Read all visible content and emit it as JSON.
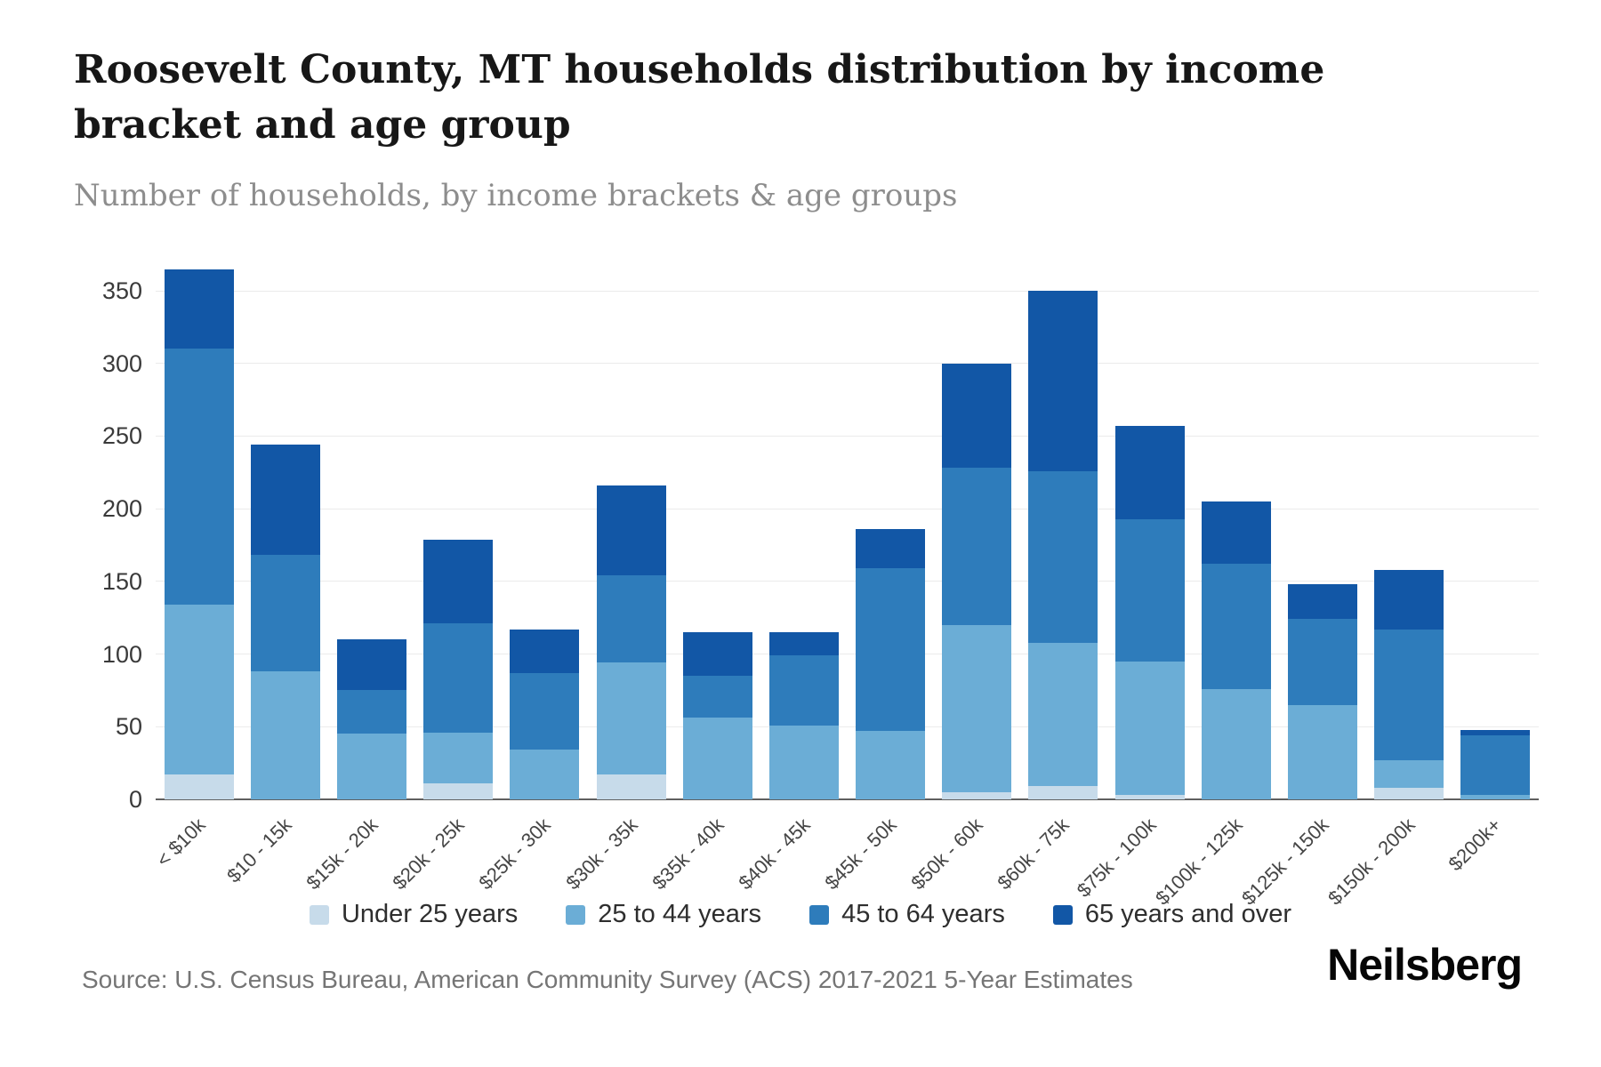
{
  "header": {
    "title": "Roosevelt County, MT households distribution by income bracket and age group",
    "subtitle": "Number of households, by income brackets & age groups"
  },
  "footer": {
    "source": "Source: U.S. Census Bureau, American Community Survey (ACS) 2017-2021 5-Year Estimates",
    "brand": "Neilsberg"
  },
  "chart_data": {
    "type": "bar",
    "stacked": true,
    "title": "Roosevelt County, MT households distribution by income bracket and age group",
    "xlabel": "",
    "ylabel": "Number of households",
    "ylim": [
      0,
      350
    ],
    "ytick_step": 50,
    "grid": true,
    "legend_position": "bottom",
    "categories": [
      "< $10k",
      "$10 - 15k",
      "$15k - 20k",
      "$20k - 25k",
      "$25k - 30k",
      "$30k - 35k",
      "$35k - 40k",
      "$40k - 45k",
      "$45k - 50k",
      "$50k - 60k",
      "$60k - 75k",
      "$75k - 100k",
      "$100k - 125k",
      "$125k - 150k",
      "$150k - 200k",
      "$200k+"
    ],
    "series": [
      {
        "name": "Under 25 years",
        "color": "#c7dbea",
        "values": [
          17,
          0,
          0,
          11,
          0,
          17,
          0,
          0,
          0,
          5,
          9,
          3,
          0,
          0,
          8,
          0
        ]
      },
      {
        "name": "25 to 44 years",
        "color": "#6badd6",
        "values": [
          117,
          88,
          45,
          35,
          34,
          77,
          56,
          51,
          47,
          115,
          99,
          92,
          76,
          65,
          19,
          3
        ]
      },
      {
        "name": "45 to 64 years",
        "color": "#2e7cbb",
        "values": [
          176,
          80,
          30,
          75,
          53,
          60,
          29,
          48,
          112,
          108,
          118,
          98,
          86,
          59,
          90,
          41
        ]
      },
      {
        "name": "65 years and over",
        "color": "#1257a6",
        "values": [
          55,
          76,
          35,
          58,
          30,
          62,
          30,
          16,
          27,
          72,
          124,
          64,
          43,
          24,
          41,
          4
        ]
      }
    ]
  }
}
